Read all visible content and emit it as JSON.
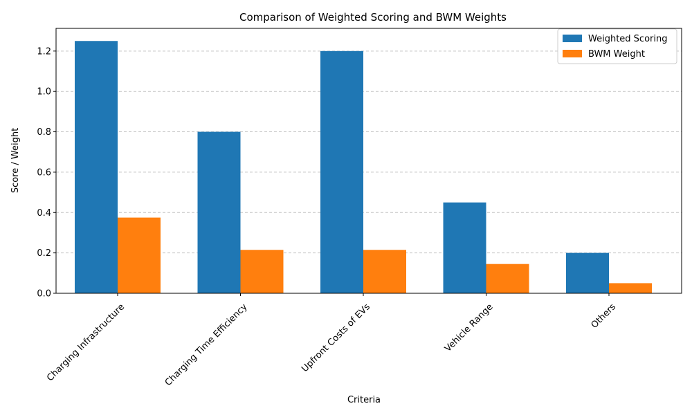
{
  "chart_data": {
    "type": "bar",
    "title": "Comparison of Weighted Scoring and BWM Weights",
    "xlabel": "Criteria",
    "ylabel": "Score / Weight",
    "categories": [
      "Charging Infrastructure",
      "Charging Time Efficiency",
      "Upfront Costs of EVs",
      "Vehicle Range",
      "Others"
    ],
    "series": [
      {
        "name": "Weighted Scoring",
        "color": "#1f77b4",
        "values": [
          1.25,
          0.8,
          1.2,
          0.45,
          0.2
        ]
      },
      {
        "name": "BWM Weight",
        "color": "#ff7f0e",
        "values": [
          0.375,
          0.215,
          0.215,
          0.145,
          0.05
        ]
      }
    ],
    "ylim": [
      0,
      1.3125
    ],
    "yticks": [
      "0.0",
      "0.2",
      "0.4",
      "0.6",
      "0.8",
      "1.0",
      "1.2"
    ],
    "grid": "y-dashed",
    "legend_position": "top-right"
  }
}
